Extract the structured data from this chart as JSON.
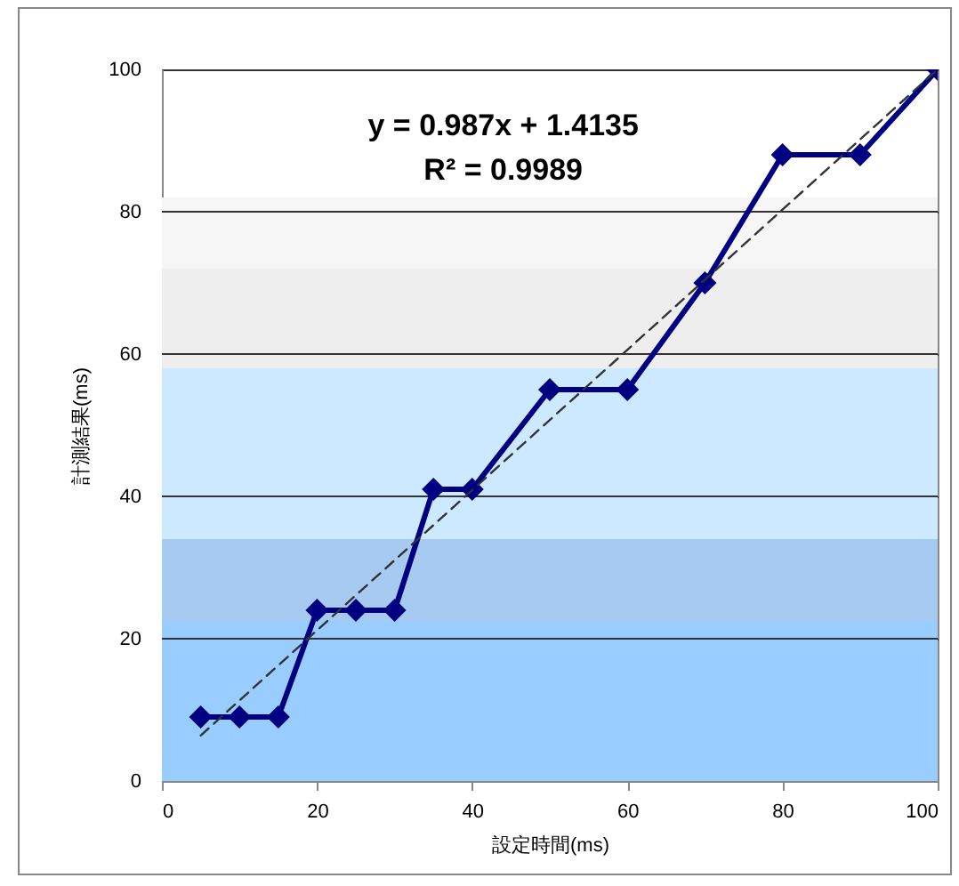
{
  "chart_data": {
    "type": "line",
    "xlabel": "設定時間(ms)",
    "ylabel": "計測結果(ms)",
    "annotations": [
      "y = 0.987x + 1.4135",
      "R² = 0.9989"
    ],
    "xlim": [
      0,
      100
    ],
    "xticks": [
      0,
      20,
      40,
      60,
      80,
      100
    ],
    "ylim": [
      0,
      100
    ],
    "yticks": [
      0,
      20,
      40,
      60,
      80,
      100
    ],
    "grid": "y",
    "bands": [
      {
        "axis": "y",
        "from": 0,
        "to": 22.5,
        "color": "#99ccff"
      },
      {
        "axis": "y",
        "from": 22.5,
        "to": 34,
        "color": "#a6caf0"
      },
      {
        "axis": "y",
        "from": 34,
        "to": 58,
        "color": "#cce9ff"
      },
      {
        "axis": "y",
        "from": 58,
        "to": 72,
        "color": "#eeeeee"
      },
      {
        "axis": "y",
        "from": 72,
        "to": 82,
        "color": "#f6f6f6"
      }
    ],
    "series": [
      {
        "color": "#000080",
        "marker": "diamond",
        "line_style": "solid",
        "x": [
          5,
          10,
          15,
          20,
          25,
          30,
          35,
          40,
          50,
          60,
          70,
          80,
          90,
          100
        ],
        "values": [
          9,
          9,
          9,
          24,
          24,
          24,
          41,
          41,
          55,
          55,
          70,
          88,
          88,
          100
        ]
      },
      {
        "color": "#333333",
        "marker": "none",
        "line_style": "dashed",
        "x": [
          5,
          100
        ],
        "values": [
          6.4,
          100
        ]
      }
    ]
  }
}
